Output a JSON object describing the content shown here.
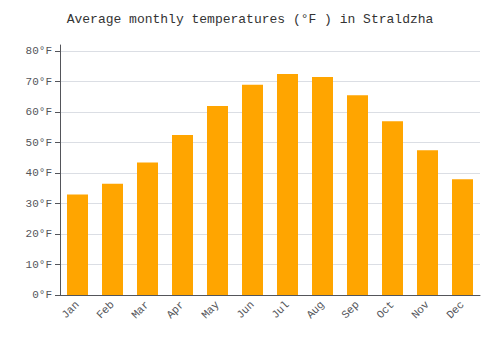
{
  "chart_data": {
    "type": "bar",
    "title": "Average monthly temperatures (°F ) in Straldzha",
    "categories": [
      "Jan",
      "Feb",
      "Mar",
      "Apr",
      "May",
      "Jun",
      "Jul",
      "Aug",
      "Sep",
      "Oct",
      "Nov",
      "Dec"
    ],
    "values": [
      33,
      36.5,
      43.5,
      52.5,
      62,
      69,
      72.5,
      71.5,
      65.5,
      57,
      47.5,
      38
    ],
    "color": "#FFA500",
    "ylim": [
      0,
      82
    ],
    "yticks": [
      {
        "value": 0,
        "label": "0°F"
      },
      {
        "value": 10,
        "label": "10°F"
      },
      {
        "value": 20,
        "label": "20°F"
      },
      {
        "value": 30,
        "label": "30°F"
      },
      {
        "value": 40,
        "label": "40°F"
      },
      {
        "value": 50,
        "label": "50°F"
      },
      {
        "value": 60,
        "label": "60°F"
      },
      {
        "value": 70,
        "label": "70°F"
      },
      {
        "value": 80,
        "label": "80°F"
      }
    ],
    "grid": true
  }
}
